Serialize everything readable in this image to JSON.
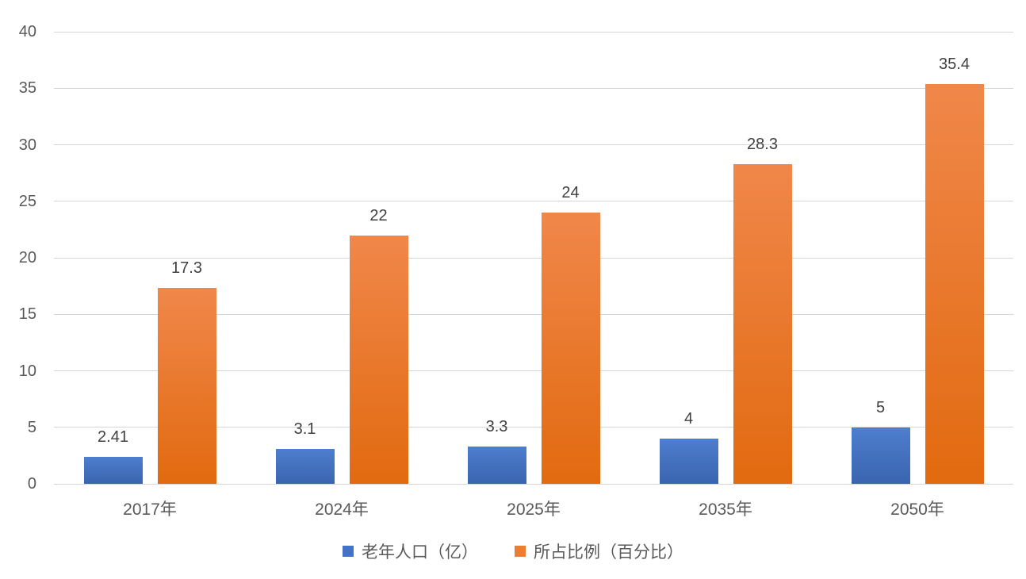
{
  "chart_data": {
    "type": "bar",
    "title": "",
    "xlabel": "",
    "ylabel": "",
    "categories": [
      "2017年",
      "2024年",
      "2025年",
      "2035年",
      "2050年"
    ],
    "series": [
      {
        "name": "老年人口（亿）",
        "values": [
          2.41,
          3.1,
          3.3,
          4,
          5
        ],
        "labels": [
          "2.41",
          "3.1",
          "3.3",
          "4",
          "5"
        ],
        "color": "#4472C4"
      },
      {
        "name": "所占比例（百分比）",
        "values": [
          17.3,
          22,
          24,
          28.3,
          35.4
        ],
        "labels": [
          "17.3",
          "22",
          "24",
          "28.3",
          "35.4"
        ],
        "color": "#ED7D31"
      }
    ],
    "ylim": [
      0,
      40
    ],
    "y_ticks": [
      0,
      5,
      10,
      15,
      20,
      25,
      30,
      35,
      40
    ],
    "grid": true,
    "legend_position": "bottom",
    "colors": {
      "gridline": "#D6D6D6",
      "tick_text": "#595959",
      "category_text": "#595959",
      "data_label_text": "#404040",
      "legend_text": "#595959",
      "background": "#FFFFFF"
    }
  }
}
